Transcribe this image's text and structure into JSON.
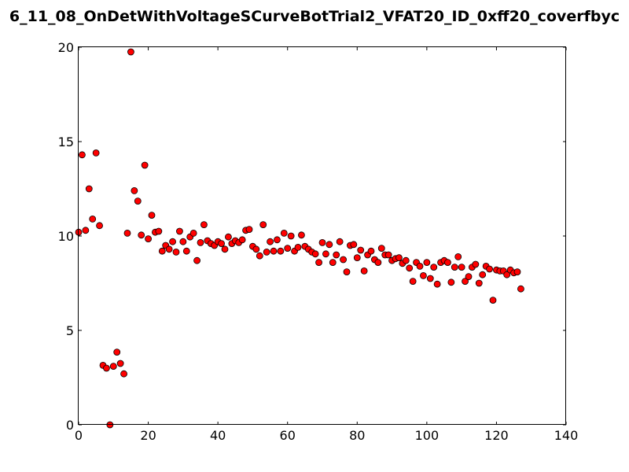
{
  "chart_data": {
    "type": "scatter",
    "title": "6_11_08_OnDetWithVoltageSCurveBotTrial2_VFAT20_ID_0xff20_coverfbyc",
    "xlabel": "",
    "ylabel": "",
    "xlim": [
      0,
      140
    ],
    "ylim": [
      0,
      20
    ],
    "xticks": [
      0,
      20,
      40,
      60,
      80,
      100,
      120,
      140
    ],
    "yticks": [
      0,
      5,
      10,
      15,
      20
    ],
    "grid": false,
    "legend": "none",
    "marker_color": "#ff0000",
    "marker_edge_color": "#000000",
    "x": [
      0,
      1,
      2,
      3,
      4,
      5,
      6,
      7,
      8,
      9,
      10,
      11,
      12,
      13,
      14,
      15,
      16,
      17,
      18,
      19,
      20,
      21,
      22,
      23,
      24,
      25,
      26,
      27,
      28,
      29,
      30,
      31,
      32,
      33,
      34,
      35,
      36,
      37,
      38,
      39,
      40,
      41,
      42,
      43,
      44,
      45,
      46,
      47,
      48,
      49,
      50,
      51,
      52,
      53,
      54,
      55,
      56,
      57,
      58,
      59,
      60,
      61,
      62,
      63,
      64,
      65,
      66,
      67,
      68,
      69,
      70,
      71,
      72,
      73,
      74,
      75,
      76,
      77,
      78,
      79,
      80,
      81,
      82,
      83,
      84,
      85,
      86,
      87,
      88,
      89,
      90,
      91,
      92,
      93,
      94,
      95,
      96,
      97,
      98,
      99,
      100,
      101,
      102,
      103,
      104,
      105,
      106,
      107,
      108,
      109,
      110,
      111,
      112,
      113,
      114,
      115,
      116,
      117,
      118,
      119,
      120,
      121,
      122,
      123,
      124,
      125,
      126,
      127
    ],
    "y": [
      10.2,
      14.3,
      10.3,
      12.5,
      10.9,
      14.4,
      10.55,
      3.15,
      3.0,
      0.0,
      3.1,
      3.85,
      3.25,
      2.7,
      10.15,
      19.75,
      12.4,
      11.85,
      10.05,
      13.75,
      9.85,
      11.1,
      10.2,
      10.25,
      9.2,
      9.5,
      9.3,
      9.7,
      9.15,
      10.25,
      9.7,
      9.2,
      9.95,
      10.15,
      8.7,
      9.65,
      10.6,
      9.75,
      9.6,
      9.5,
      9.7,
      9.6,
      9.3,
      9.95,
      9.6,
      9.75,
      9.65,
      9.8,
      10.3,
      10.35,
      9.45,
      9.3,
      8.95,
      10.6,
      9.15,
      9.7,
      9.2,
      9.8,
      9.2,
      10.15,
      9.35,
      10.0,
      9.2,
      9.4,
      10.05,
      9.45,
      9.3,
      9.15,
      9.05,
      8.6,
      9.65,
      9.05,
      9.55,
      8.6,
      9.0,
      9.7,
      8.75,
      8.1,
      9.5,
      9.55,
      8.85,
      9.25,
      8.15,
      9.0,
      9.2,
      8.75,
      8.6,
      9.35,
      9.0,
      9.0,
      8.7,
      8.8,
      8.85,
      8.55,
      8.7,
      8.3,
      7.6,
      8.6,
      8.4,
      7.9,
      8.6,
      7.75,
      8.35,
      7.45,
      8.6,
      8.7,
      8.6,
      7.55,
      8.35,
      8.9,
      8.35,
      7.6,
      7.85,
      8.35,
      8.5,
      7.5,
      7.95,
      8.4,
      8.25,
      6.6,
      8.2,
      8.15,
      8.15,
      7.95,
      8.2,
      8.05,
      8.1,
      7.2
    ]
  }
}
